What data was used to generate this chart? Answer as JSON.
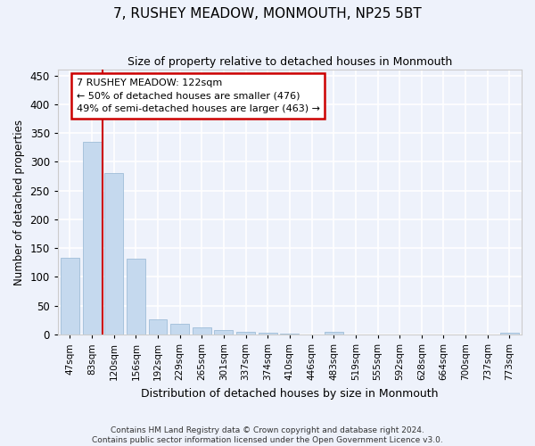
{
  "title": "7, RUSHEY MEADOW, MONMOUTH, NP25 5BT",
  "subtitle": "Size of property relative to detached houses in Monmouth",
  "xlabel": "Distribution of detached houses by size in Monmouth",
  "ylabel": "Number of detached properties",
  "bar_color": "#c5d9ee",
  "bar_edge_color": "#9fbdd8",
  "categories": [
    "47sqm",
    "83sqm",
    "120sqm",
    "156sqm",
    "192sqm",
    "229sqm",
    "265sqm",
    "301sqm",
    "337sqm",
    "374sqm",
    "410sqm",
    "446sqm",
    "483sqm",
    "519sqm",
    "555sqm",
    "592sqm",
    "628sqm",
    "664sqm",
    "700sqm",
    "737sqm",
    "773sqm"
  ],
  "values": [
    133,
    335,
    280,
    132,
    27,
    18,
    13,
    7,
    5,
    3,
    1,
    0,
    4,
    0,
    0,
    0,
    0,
    0,
    0,
    0,
    3
  ],
  "vline_x_index": 1.5,
  "vline_color": "#cc0000",
  "annotation_text": "7 RUSHEY MEADOW: 122sqm\n← 50% of detached houses are smaller (476)\n49% of semi-detached houses are larger (463) →",
  "annotation_box_color": "#ffffff",
  "annotation_box_edge": "#cc0000",
  "ylim": [
    0,
    460
  ],
  "yticks": [
    0,
    50,
    100,
    150,
    200,
    250,
    300,
    350,
    400,
    450
  ],
  "footer": "Contains HM Land Registry data © Crown copyright and database right 2024.\nContains public sector information licensed under the Open Government Licence v3.0.",
  "bg_color": "#eef2fb",
  "grid_color": "#ffffff"
}
